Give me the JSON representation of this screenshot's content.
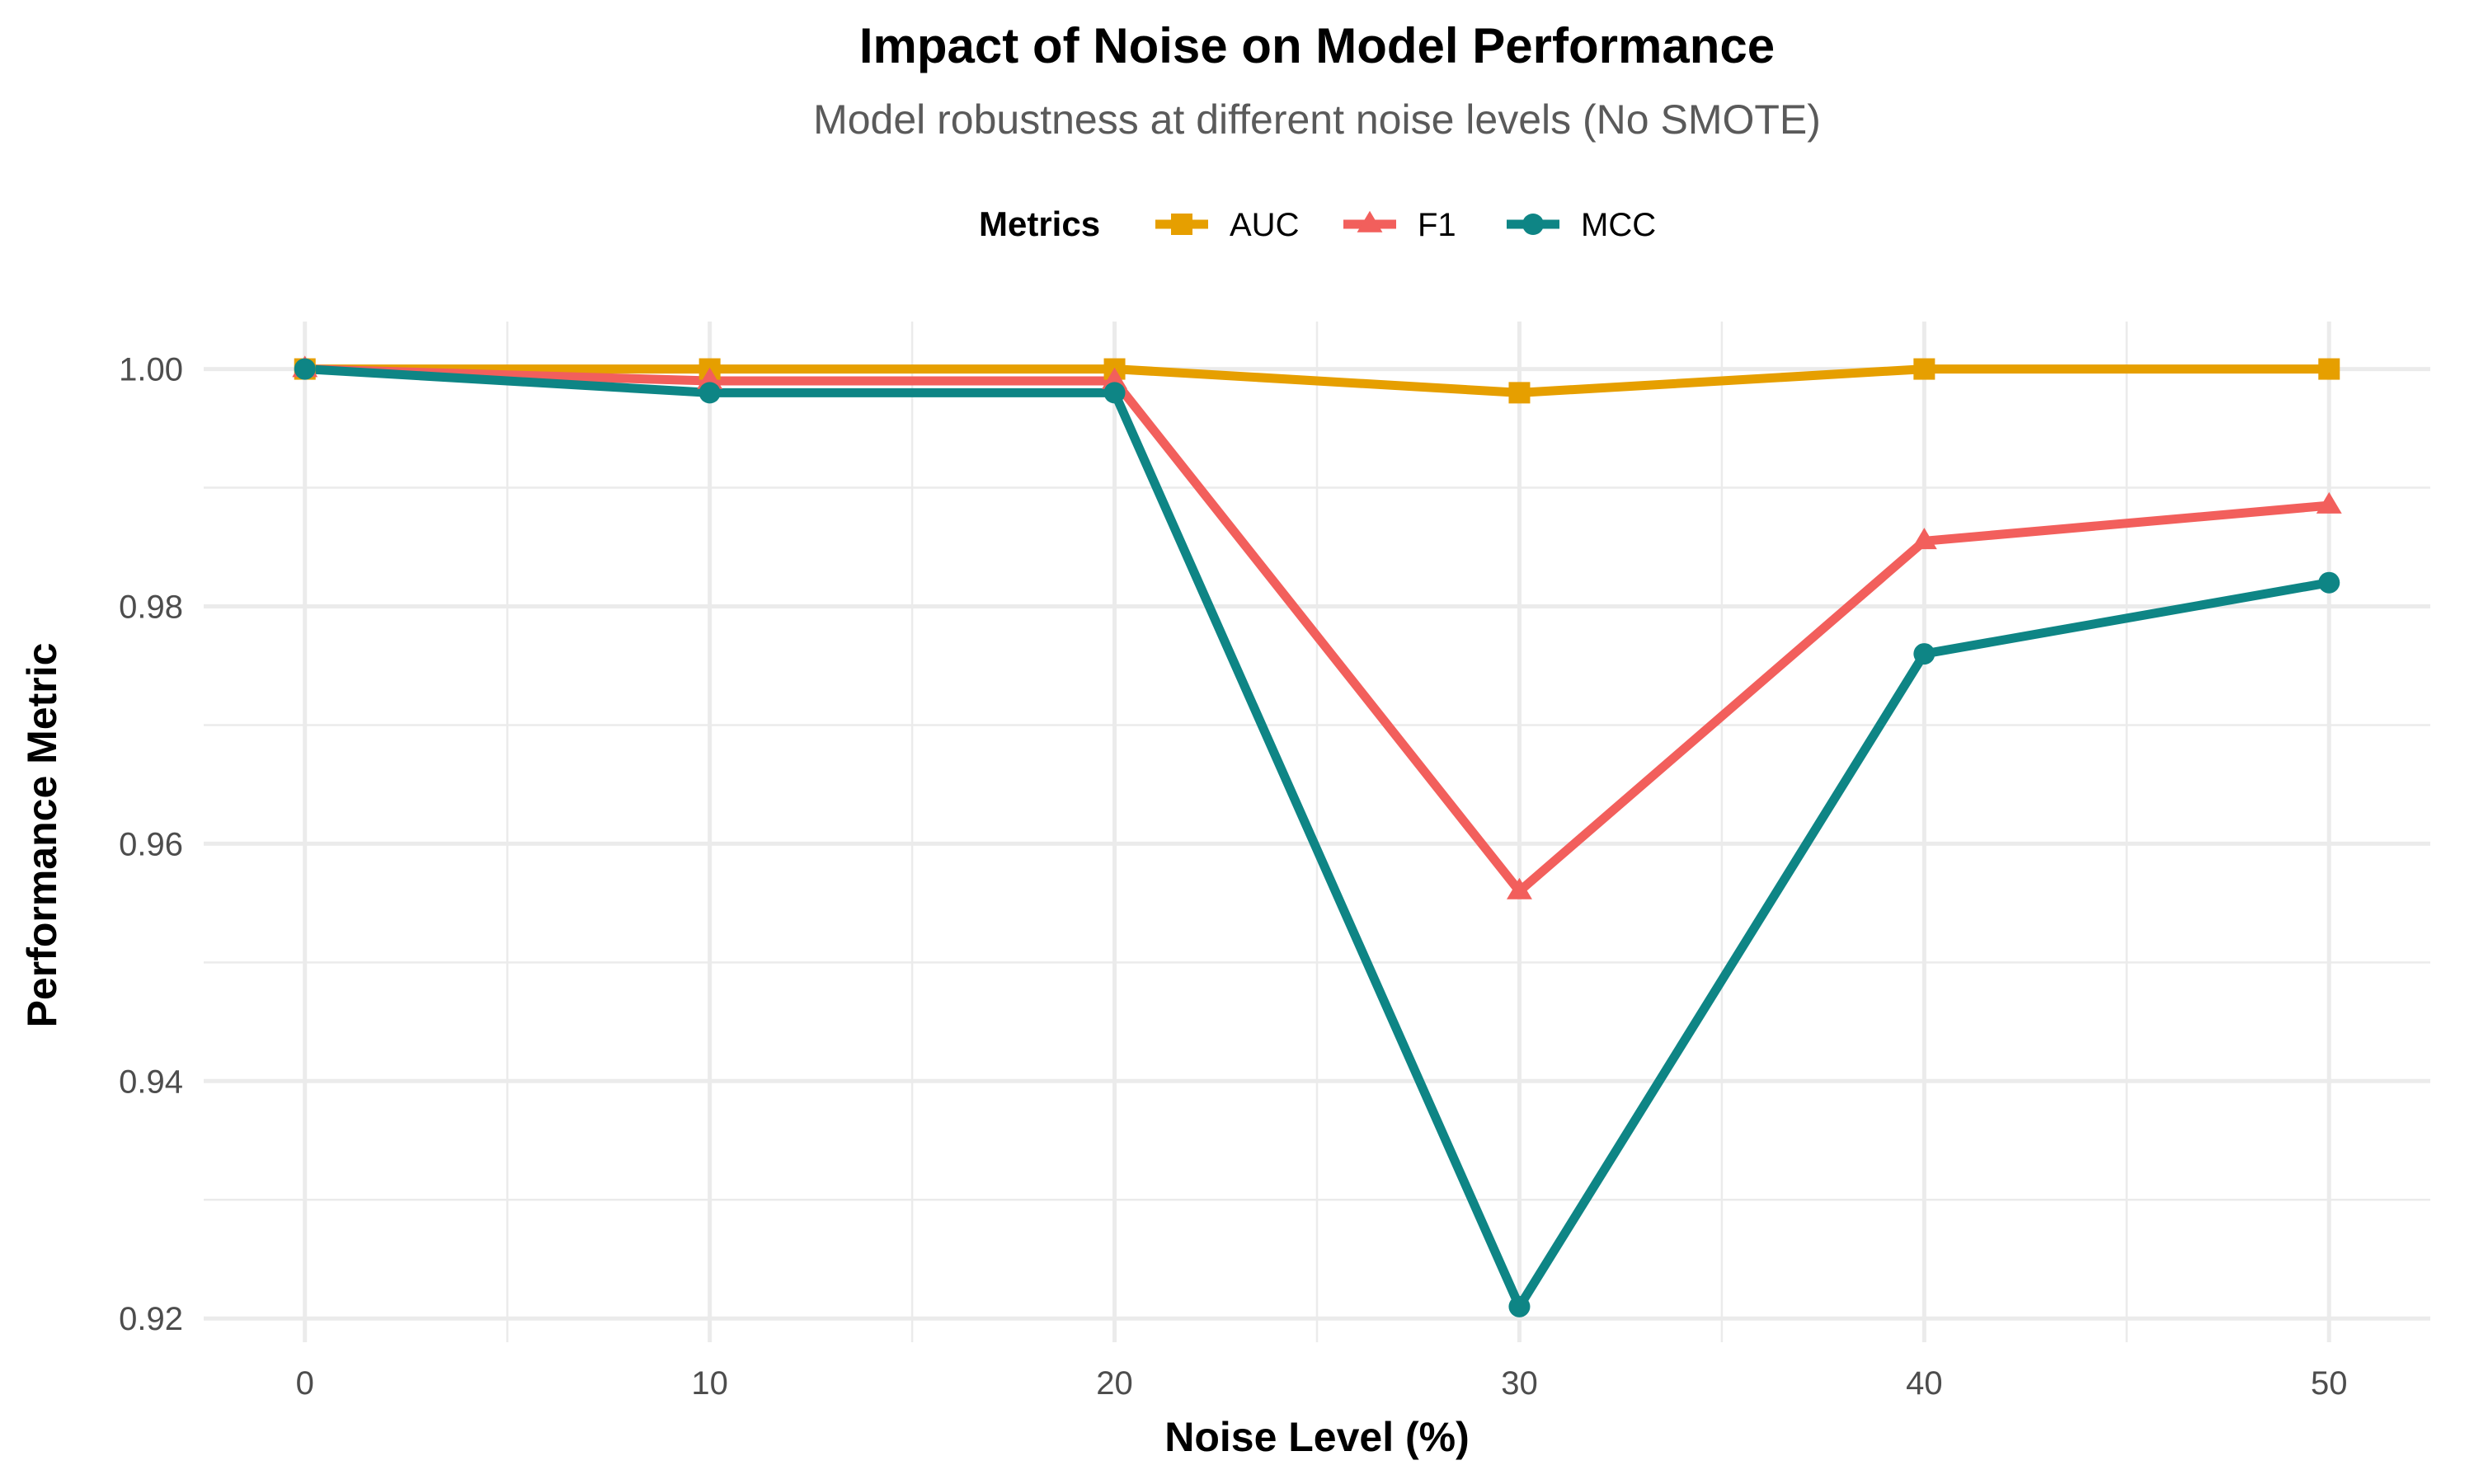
{
  "chart_data": {
    "type": "line",
    "title": "Impact of Noise on Model Performance",
    "subtitle": "Model robustness at different noise levels (No SMOTE)",
    "xlabel": "Noise Level (%)",
    "ylabel": "Performance Metric",
    "x": [
      0,
      10,
      20,
      30,
      40,
      50
    ],
    "x_ticks": [
      "0",
      "10",
      "20",
      "30",
      "40",
      "50"
    ],
    "y_ticks": [
      "0.92",
      "0.94",
      "0.96",
      "0.98",
      "1.00"
    ],
    "y_tick_values": [
      0.92,
      0.94,
      0.96,
      0.98,
      1.0
    ],
    "xlim": [
      -2.5,
      52.5
    ],
    "ylim": [
      0.918,
      1.004
    ],
    "grid": true,
    "legend": {
      "title": "Metrics",
      "position": "top"
    },
    "series": [
      {
        "name": "AUC",
        "color": "#E69F00",
        "marker": "square",
        "values": [
          1.0,
          1.0,
          1.0,
          0.998,
          1.0,
          1.0
        ]
      },
      {
        "name": "F1",
        "color": "#F25F5C",
        "marker": "triangle",
        "values": [
          1.0,
          0.999,
          0.999,
          0.956,
          0.9855,
          0.9885
        ]
      },
      {
        "name": "MCC",
        "color": "#0E8585",
        "marker": "circle",
        "values": [
          1.0,
          0.998,
          0.998,
          0.921,
          0.976,
          0.982
        ]
      }
    ]
  }
}
